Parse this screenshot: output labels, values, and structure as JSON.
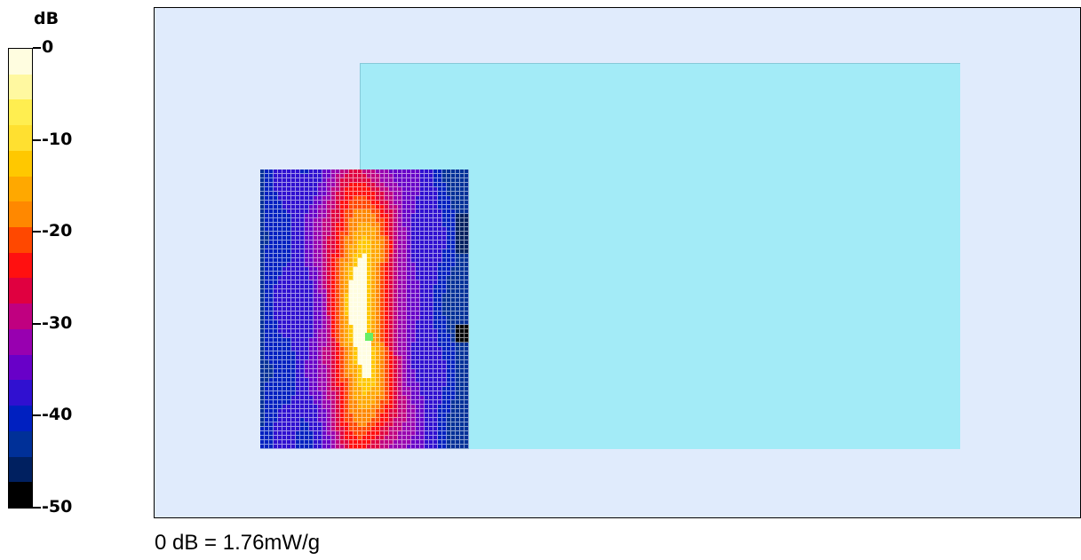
{
  "legend": {
    "unit": "dB",
    "ticks": [
      "0",
      "-10",
      "-20",
      "-30",
      "-40",
      "-50"
    ],
    "colors": [
      "#fffde0",
      "#fff8a0",
      "#ffee50",
      "#ffe030",
      "#ffc800",
      "#ffa800",
      "#ff8800",
      "#ff4800",
      "#ff1010",
      "#e00040",
      "#c00080",
      "#9800b0",
      "#6800c8",
      "#3010d0",
      "#0020c0",
      "#003098",
      "#002060",
      "#000000"
    ]
  },
  "reference": "0 dB = 1.76mW/g",
  "chart_data": {
    "type": "heatmap",
    "colorbar": {
      "label": "dB",
      "min": -50,
      "max": 0,
      "ticks": [
        0,
        -10,
        -20,
        -30,
        -40,
        -50
      ]
    },
    "reference_level": "0 dB = 1.76mW/g",
    "peak_db": 0,
    "grid_size": {
      "cols": 47,
      "rows": 63
    }
  }
}
